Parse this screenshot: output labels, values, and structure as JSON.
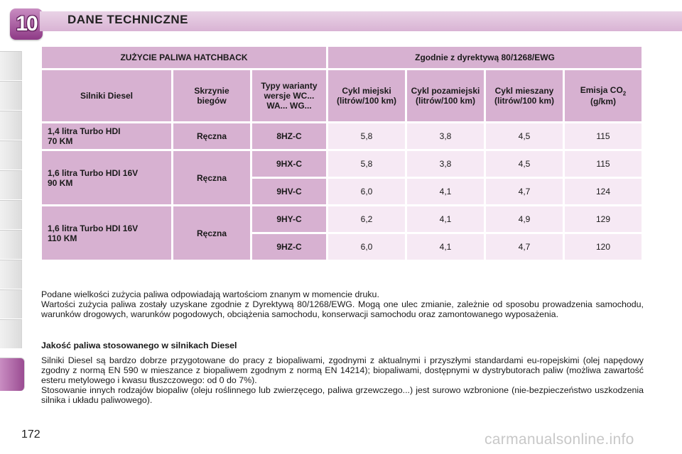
{
  "header": {
    "chapter_number": "10",
    "title": "DANE TECHNICZNE"
  },
  "table": {
    "title": "ZUŻYCIE PALIWA HATCHBACK",
    "directive": "Zgodnie z dyrektywą 80/1268/EWG",
    "columns": {
      "engines": "Silniki Diesel",
      "gearbox": "Skrzynie biegów",
      "variants": "Typy warianty wersje WC... WA... WG...",
      "urban": "Cykl miejski (litrów/100 km)",
      "extra_urban": "Cykl pozamiejski (litrów/100 km)",
      "combined": "Cykl mieszany (litrów/100 km)",
      "emission_co": "Emisja CO",
      "emission_sub": "2",
      "emission_unit": " (g/km)"
    },
    "groups": [
      {
        "engine_l1": "1,4 litra Turbo HDI",
        "engine_l2": "70 KM",
        "gearbox": "Ręczna",
        "rows": [
          {
            "code": "8HZ-C",
            "urban": "5,8",
            "extra": "3,8",
            "mixed": "4,5",
            "co2": "115"
          }
        ]
      },
      {
        "engine_l1": "1,6 litra Turbo HDI 16V",
        "engine_l2": "90 KM",
        "gearbox": "Ręczna",
        "rows": [
          {
            "code": "9HX-C",
            "urban": "5,8",
            "extra": "3,8",
            "mixed": "4,5",
            "co2": "115"
          },
          {
            "code": "9HV-C",
            "urban": "6,0",
            "extra": "4,1",
            "mixed": "4,7",
            "co2": "124"
          }
        ]
      },
      {
        "engine_l1": "1,6 litra Turbo HDI 16V",
        "engine_l2": "110 KM",
        "gearbox": "Ręczna",
        "rows": [
          {
            "code": "9HY-C",
            "urban": "6,2",
            "extra": "4,1",
            "mixed": "4,9",
            "co2": "129"
          },
          {
            "code": "9HZ-C",
            "urban": "6,0",
            "extra": "4,1",
            "mixed": "4,7",
            "co2": "120"
          }
        ]
      }
    ]
  },
  "notes": {
    "p1_l1": "Podane wielkości zużycia paliwa odpowiadają wartościom znanym w momencie druku.",
    "p1_l2": "Wartości zużycia paliwa zostały uzyskane zgodnie z Dyrektywą 80/1268/EWG. Mogą one ulec zmianie, zależnie od sposobu prowadzenia samochodu, warunków drogowych, warunków pogodowych, obciążenia samochodu, konserwacji samochodu oraz zamontowanego wyposażenia.",
    "quality_title": "Jakość paliwa stosowanego w silnikach Diesel",
    "quality_p1": "Silniki Diesel są bardzo dobrze przygotowane do pracy z biopaliwami, zgodnymi z aktualnymi i przyszłymi standardami eu-ropejskimi (olej napędowy zgodny z normą EN 590 w mieszance z biopaliwem zgodnym z normą EN 14214); biopaliwami, dostępnymi w dystrybutorach paliw (możliwa zawartość esteru metylowego i kwasu tłuszczowego: od 0 do 7%).",
    "quality_p2": "Stosowanie innych rodzajów biopaliw (oleju roślinnego lub zwierzęcego, paliwa grzewczego...) jest surowo wzbronione (nie-bezpieczeństwo uszkodzenia silnika i układu paliwowego)."
  },
  "page_number": "172",
  "watermark": "carmanualsonline.info",
  "colors": {
    "accent": "#9a4c92",
    "table_header": "#d7b1d1",
    "table_cell": "#f6e9f4"
  }
}
